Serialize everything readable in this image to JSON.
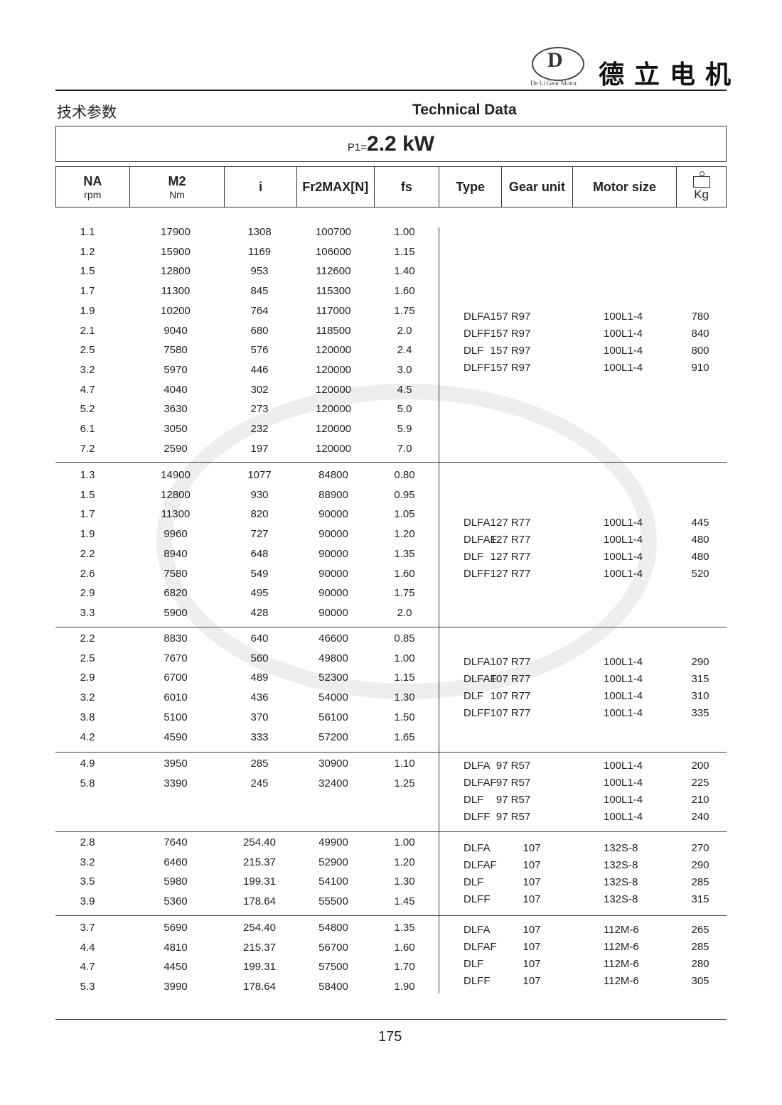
{
  "brand": {
    "name": "德立电机",
    "logo_text": "De Li Gear Motor"
  },
  "title_cn": "技术参数",
  "title_en": "Technical Data",
  "power": {
    "label": "P1=",
    "value": "2.2 kW"
  },
  "headers": [
    {
      "main": "NA",
      "sub": "rpm"
    },
    {
      "main": "M2",
      "sub": "Nm"
    },
    {
      "main": "i",
      "sub": ""
    },
    {
      "main": "Fr2MAX[N]",
      "sub": ""
    },
    {
      "main": "fs",
      "sub": ""
    },
    {
      "main": "Type",
      "sub": ""
    },
    {
      "main": "Gear unit",
      "sub": ""
    },
    {
      "main": "Motor size",
      "sub": ""
    },
    {
      "main": "",
      "sub": "Kg"
    }
  ],
  "groups": [
    {
      "rows": [
        [
          "1.1",
          "17900",
          "1308",
          "100700",
          "1.00"
        ],
        [
          "1.2",
          "15900",
          "1169",
          "106000",
          "1.15"
        ],
        [
          "1.5",
          "12800",
          "953",
          "112600",
          "1.40"
        ],
        [
          "1.7",
          "11300",
          "845",
          "115300",
          "1.60"
        ],
        [
          "1.9",
          "10200",
          "764",
          "117000",
          "1.75"
        ],
        [
          "2.1",
          "9040",
          "680",
          "118500",
          "2.0"
        ],
        [
          "2.5",
          "7580",
          "576",
          "120000",
          "2.4"
        ],
        [
          "3.2",
          "5970",
          "446",
          "120000",
          "3.0"
        ],
        [
          "4.7",
          "4040",
          "302",
          "120000",
          "4.5"
        ],
        [
          "5.2",
          "3630",
          "273",
          "120000",
          "5.0"
        ],
        [
          "6.1",
          "3050",
          "232",
          "120000",
          "5.9"
        ],
        [
          "7.2",
          "2590",
          "197",
          "120000",
          "7.0"
        ]
      ],
      "units": [
        [
          "DLFA",
          "157 R97",
          "100L1-4",
          "780"
        ],
        [
          "DLFF",
          "157 R97",
          "100L1-4",
          "840"
        ],
        [
          "DLF",
          "157 R97",
          "100L1-4",
          "800"
        ],
        [
          "DLFF",
          "157 R97",
          "100L1-4",
          "910"
        ]
      ]
    },
    {
      "rows": [
        [
          "1.3",
          "14900",
          "1077",
          "84800",
          "0.80"
        ],
        [
          "1.5",
          "12800",
          "930",
          "88900",
          "0.95"
        ],
        [
          "1.7",
          "11300",
          "820",
          "90000",
          "1.05"
        ],
        [
          "1.9",
          "9960",
          "727",
          "90000",
          "1.20"
        ],
        [
          "2.2",
          "8940",
          "648",
          "90000",
          "1.35"
        ],
        [
          "2.6",
          "7580",
          "549",
          "90000",
          "1.60"
        ],
        [
          "2.9",
          "6820",
          "495",
          "90000",
          "1.75"
        ],
        [
          "3.3",
          "5900",
          "428",
          "90000",
          "2.0"
        ]
      ],
      "units": [
        [
          "DLFA",
          "127 R77",
          "100L1-4",
          "445"
        ],
        [
          "DLFAF",
          "127 R77",
          "100L1-4",
          "480"
        ],
        [
          "DLF",
          "127 R77",
          "100L1-4",
          "480"
        ],
        [
          "DLFF",
          "127 R77",
          "100L1-4",
          "520"
        ]
      ]
    },
    {
      "rows": [
        [
          "2.2",
          "8830",
          "640",
          "46600",
          "0.85"
        ],
        [
          "2.5",
          "7670",
          "560",
          "49800",
          "1.00"
        ],
        [
          "2.9",
          "6700",
          "489",
          "52300",
          "1.15"
        ],
        [
          "3.2",
          "6010",
          "436",
          "54000",
          "1.30"
        ],
        [
          "3.8",
          "5100",
          "370",
          "56100",
          "1.50"
        ],
        [
          "4.2",
          "4590",
          "333",
          "57200",
          "1.65"
        ]
      ],
      "units": [
        [
          "DLFA",
          "107 R77",
          "100L1-4",
          "290"
        ],
        [
          "DLFAF",
          "107 R77",
          "100L1-4",
          "315"
        ],
        [
          "DLF",
          "107 R77",
          "100L1-4",
          "310"
        ],
        [
          "DLFF",
          "107 R77",
          "100L1-4",
          "335"
        ]
      ]
    },
    {
      "rows": [
        [
          "4.9",
          "3950",
          "285",
          "30900",
          "1.10"
        ],
        [
          "5.8",
          "3390",
          "245",
          "32400",
          "1.25"
        ]
      ],
      "units": [
        [
          "DLFA",
          "97 R57",
          "100L1-4",
          "200"
        ],
        [
          "DLFAF",
          "97 R57",
          "100L1-4",
          "225"
        ],
        [
          "DLF",
          "97 R57",
          "100L1-4",
          "210"
        ],
        [
          "DLFF",
          "97 R57",
          "100L1-4",
          "240"
        ]
      ]
    },
    {
      "rows": [
        [
          "2.8",
          "7640",
          "254.40",
          "49900",
          "1.00"
        ],
        [
          "3.2",
          "6460",
          "215.37",
          "52900",
          "1.20"
        ],
        [
          "3.5",
          "5980",
          "199.31",
          "54100",
          "1.30"
        ],
        [
          "3.9",
          "5360",
          "178.64",
          "55500",
          "1.45"
        ]
      ],
      "units": [
        [
          "DLFA",
          "107",
          "132S-8",
          "270"
        ],
        [
          "DLFAF",
          "107",
          "132S-8",
          "290"
        ],
        [
          "DLF",
          "107",
          "132S-8",
          "285"
        ],
        [
          "DLFF",
          "107",
          "132S-8",
          "315"
        ]
      ]
    },
    {
      "rows": [
        [
          "3.7",
          "5690",
          "254.40",
          "54800",
          "1.35"
        ],
        [
          "4.4",
          "4810",
          "215.37",
          "56700",
          "1.60"
        ],
        [
          "4.7",
          "4450",
          "199.31",
          "57500",
          "1.70"
        ],
        [
          "5.3",
          "3990",
          "178.64",
          "58400",
          "1.90"
        ]
      ],
      "units": [
        [
          "DLFA",
          "107",
          "112M-6",
          "265"
        ],
        [
          "DLFAF",
          "107",
          "112M-6",
          "285"
        ],
        [
          "DLF",
          "107",
          "112M-6",
          "280"
        ],
        [
          "DLFF",
          "107",
          "112M-6",
          "305"
        ]
      ]
    }
  ],
  "page_number": "175"
}
